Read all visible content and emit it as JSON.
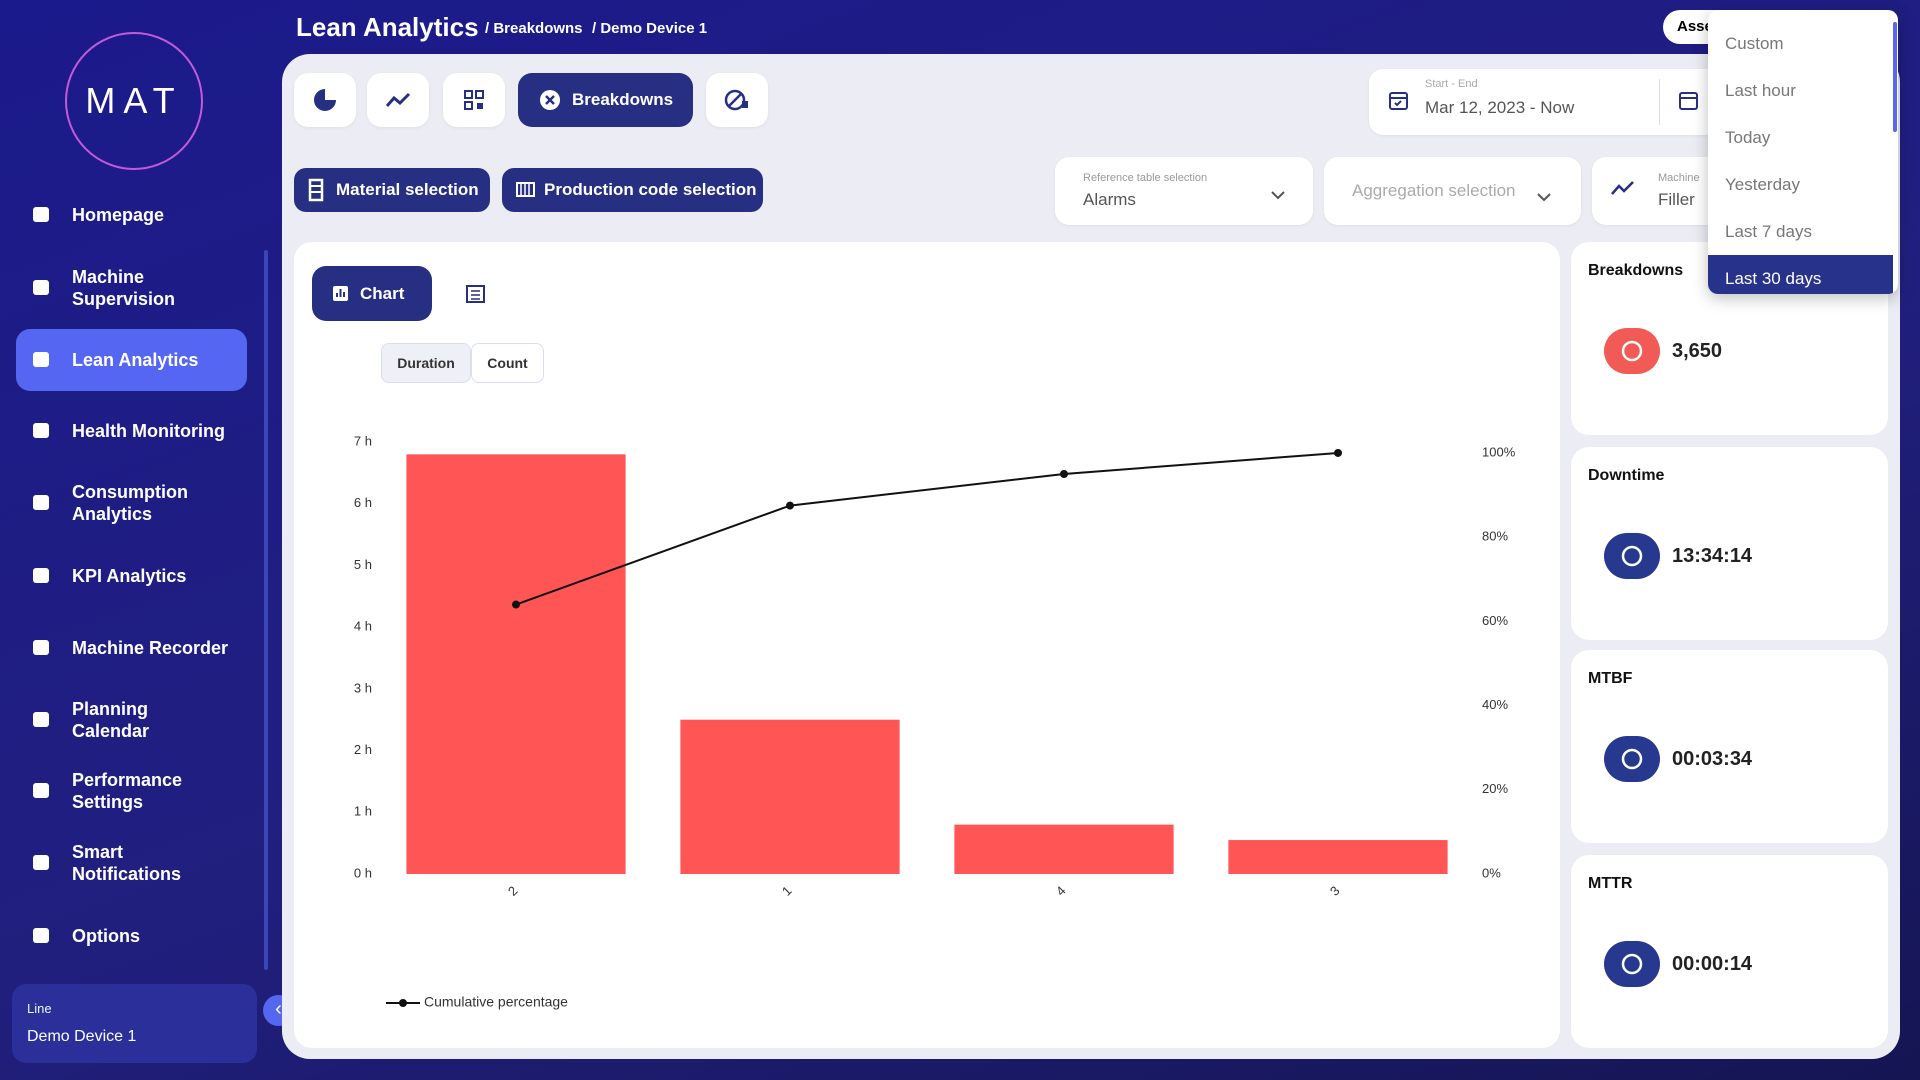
{
  "sidebar": {
    "logo": "MAT",
    "nav": [
      "Homepage",
      "Machine Supervision",
      "Lean Analytics",
      "Health Monitoring",
      "Consumption Analytics",
      "KPI Analytics",
      "Machine Recorder",
      "Planning Calendar",
      "Performance Settings",
      "Smart Notifications",
      "Options"
    ],
    "active_nav": 2,
    "line_label": "Line",
    "line_value": "Demo Device 1"
  },
  "header": {
    "title": "Lean Analytics",
    "breadcrumbs": [
      "/ Breakdowns",
      "/ Demo Device 1"
    ],
    "asset_button": "Asse"
  },
  "toolbar": {
    "active_tab": "Breakdowns",
    "date_label": "Start - End",
    "date_value": "Mar 12, 2023 - Now",
    "material_button": "Material selection",
    "production_button": "Production code selection",
    "reference_label": "Reference table selection",
    "reference_value": "Alarms",
    "aggregation_placeholder": "Aggregation selection",
    "machine_label": "Machine",
    "machine_value": "Filler"
  },
  "chart_tab": "Chart",
  "toggles": [
    "Duration",
    "Count"
  ],
  "chart": {
    "type": "bar",
    "categories": [
      "2",
      "1",
      "4",
      "3"
    ],
    "series": [
      {
        "color": "#ff5555",
        "values": [
          6.8,
          2.5,
          0.8,
          0.55
        ]
      },
      {
        "name": "Cumulative percentage",
        "color": "#111111",
        "values": [
          64,
          87.5,
          95,
          100
        ],
        "axis": "y2"
      }
    ],
    "ylim": [
      0,
      7
    ],
    "yticks": [
      {
        "value": 0,
        "label": "0 h"
      },
      {
        "value": 1,
        "label": "1 h"
      },
      {
        "value": 2,
        "label": "2 h"
      },
      {
        "value": 3,
        "label": "3 h"
      },
      {
        "value": 4,
        "label": "4 h"
      },
      {
        "value": 5,
        "label": "5 h"
      },
      {
        "value": 6,
        "label": "6 h"
      },
      {
        "value": 7,
        "label": "7 h"
      }
    ],
    "y2lim": [
      0,
      102.6
    ],
    "y2ticks": [
      {
        "value": 0,
        "label": "0%"
      },
      {
        "value": 20,
        "label": "20%"
      },
      {
        "value": 40,
        "label": "40%"
      },
      {
        "value": 60,
        "label": "60%"
      },
      {
        "value": 80,
        "label": "80%"
      },
      {
        "value": 100,
        "label": "100%"
      }
    ],
    "grid": false
  },
  "kpis": [
    {
      "title": "Breakdowns",
      "value": "3,650"
    },
    {
      "title": "Downtime",
      "value": "13:34:14"
    },
    {
      "title": "MTBF",
      "value": "00:03:34"
    },
    {
      "title": "MTTR",
      "value": "00:00:14"
    }
  ],
  "time_menu": {
    "items": [
      "Custom",
      "Last hour",
      "Today",
      "Yesterday",
      "Last 7 days",
      "Last 30 days"
    ],
    "selected": 5
  }
}
